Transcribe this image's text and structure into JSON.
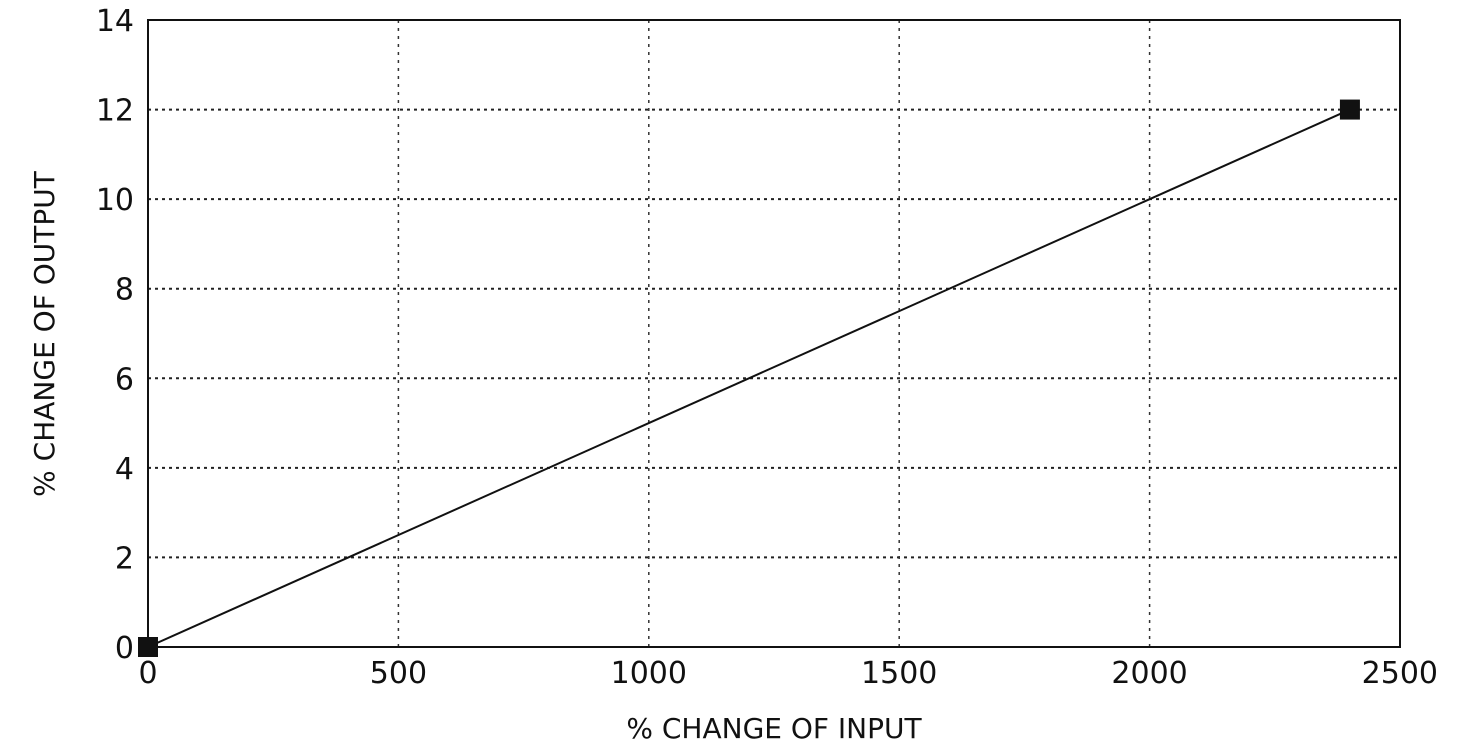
{
  "chart_data": {
    "type": "line",
    "title": "",
    "xlabel": "% CHANGE OF INPUT",
    "ylabel": "% CHANGE OF OUTPUT",
    "xlim": [
      0,
      2500
    ],
    "ylim": [
      0,
      14
    ],
    "xticks": [
      "0",
      "500",
      "1000",
      "1500",
      "2000",
      "2500"
    ],
    "yticks": [
      "0",
      "2",
      "4",
      "6",
      "8",
      "10",
      "12",
      "14"
    ],
    "grid": true,
    "legend": "none",
    "series": [
      {
        "x": [
          0,
          2400
        ],
        "y": [
          0,
          12
        ],
        "marker": "square",
        "color": "#111111"
      }
    ]
  }
}
